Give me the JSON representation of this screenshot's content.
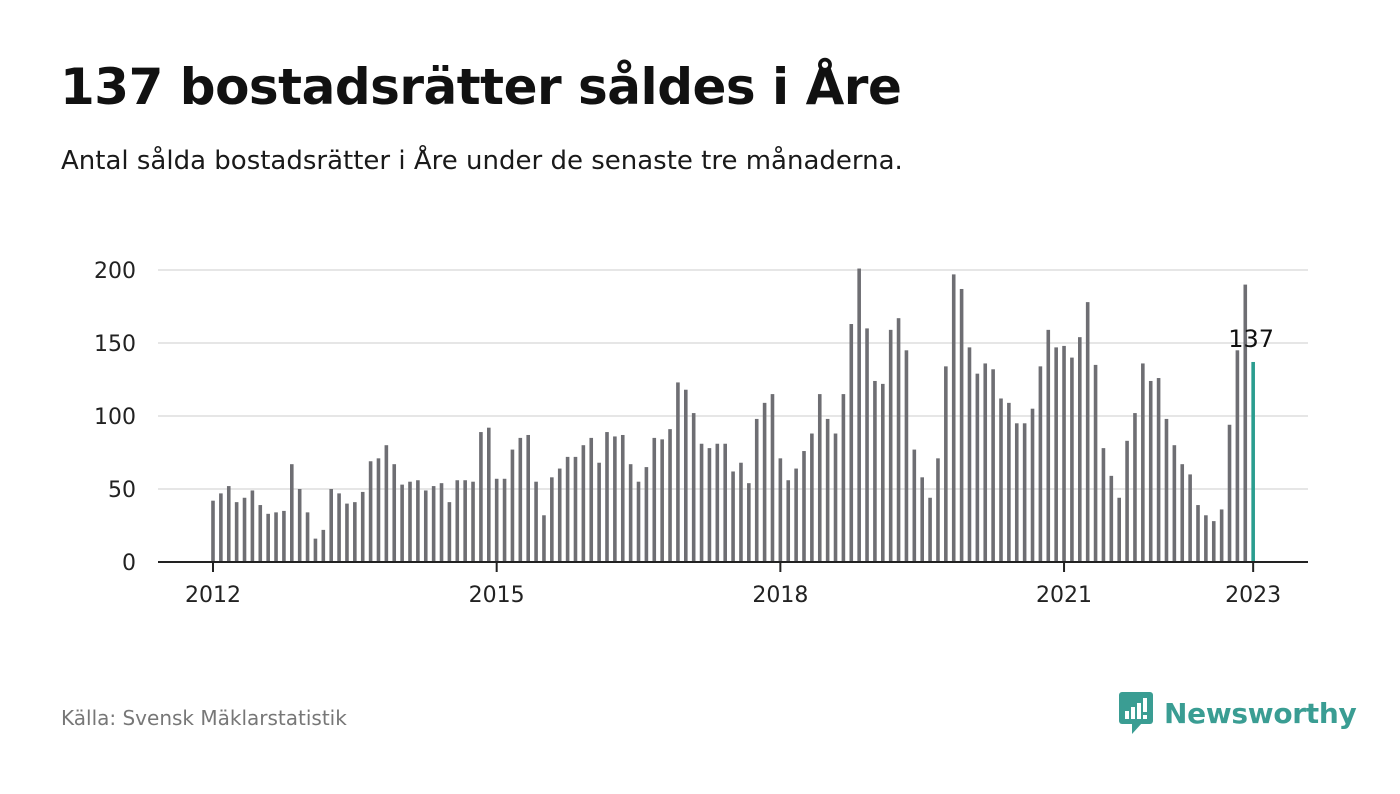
{
  "header": {
    "title": "137 bostadsrätter såldes i Åre",
    "subtitle": "Antal sålda bostadsrätter i Åre under de senaste tre månaderna."
  },
  "footer": {
    "source": "Källa: Svensk Mäklarstatistik",
    "brand": "Newsworthy"
  },
  "colors": {
    "bar": "#6e6e73",
    "highlight": "#2a9d8f",
    "grid": "#dddddd",
    "axis": "#222222",
    "brand": "#3a9d93"
  },
  "chart_data": {
    "type": "bar",
    "x_start": "2012-01",
    "x_step": "month",
    "values": [
      42,
      47,
      52,
      41,
      44,
      49,
      39,
      33,
      34,
      35,
      67,
      50,
      34,
      16,
      22,
      50,
      47,
      40,
      41,
      48,
      69,
      71,
      80,
      67,
      53,
      55,
      56,
      49,
      52,
      54,
      41,
      56,
      56,
      55,
      89,
      92,
      57,
      57,
      77,
      85,
      87,
      55,
      32,
      58,
      64,
      72,
      72,
      80,
      85,
      68,
      89,
      86,
      87,
      67,
      55,
      65,
      85,
      84,
      91,
      123,
      118,
      102,
      81,
      78,
      81,
      81,
      62,
      68,
      54,
      98,
      109,
      115,
      71,
      56,
      64,
      76,
      88,
      115,
      98,
      88,
      115,
      163,
      201,
      160,
      124,
      122,
      159,
      167,
      145,
      77,
      58,
      44,
      71,
      134,
      197,
      187,
      147,
      129,
      136,
      132,
      112,
      109,
      95,
      95,
      105,
      134,
      159,
      147,
      148,
      140,
      154,
      178,
      135,
      78,
      59,
      44,
      83,
      102,
      136,
      124,
      126,
      98,
      80,
      67,
      60,
      39,
      32,
      28,
      36,
      94,
      145,
      190,
      137
    ],
    "highlight_last": true,
    "data_label": "137",
    "x_ticks": [
      "2012",
      "2015",
      "2018",
      "2021",
      "2023"
    ],
    "y_ticks": [
      "0",
      "50",
      "100",
      "150",
      "200"
    ],
    "ylim": [
      0,
      200
    ],
    "grid": true,
    "legend": "none"
  }
}
